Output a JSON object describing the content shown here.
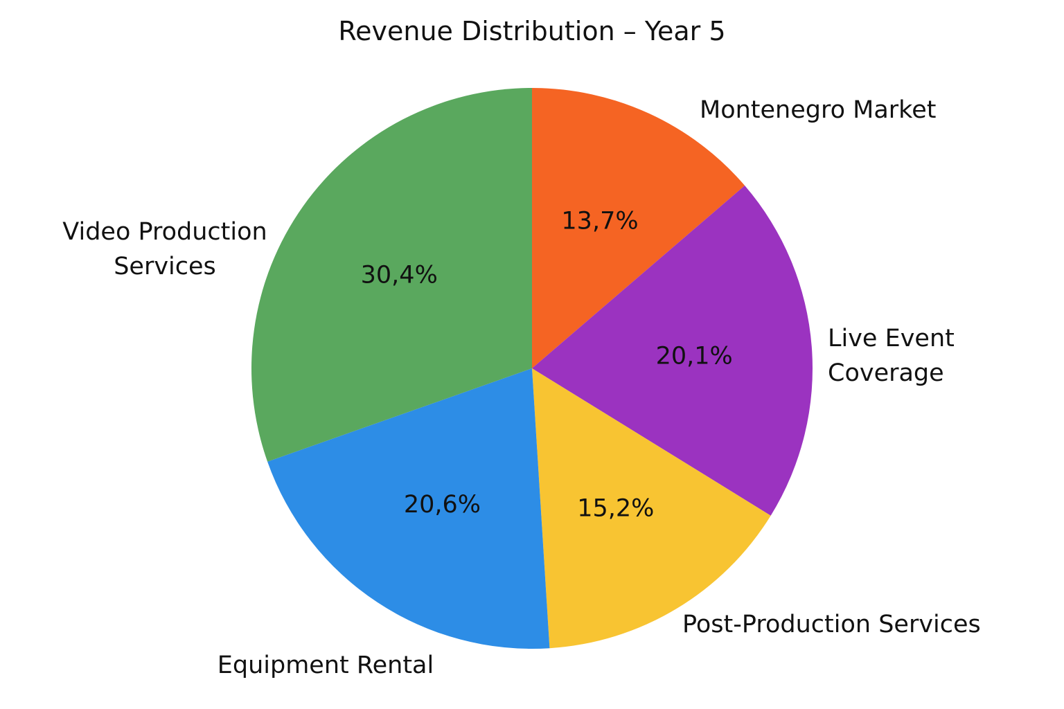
{
  "chart_data": {
    "type": "pie",
    "title": "Revenue Distribution – Year 5",
    "start_angle_deg": 0,
    "direction": "clockwise",
    "legend": "none",
    "slices": [
      {
        "label_lines": [
          "Montenegro Market"
        ],
        "value": 13.7,
        "display": "13,7%",
        "color": "#f56423"
      },
      {
        "label_lines": [
          "Live Event",
          "Coverage"
        ],
        "value": 20.1,
        "display": "20,1%",
        "color": "#9b33c0"
      },
      {
        "label_lines": [
          "Post-Production Services"
        ],
        "value": 15.2,
        "display": "15,2%",
        "color": "#f8c432"
      },
      {
        "label_lines": [
          "Equipment Rental"
        ],
        "value": 20.6,
        "display": "20,6%",
        "color": "#2d8de6"
      },
      {
        "label_lines": [
          "Video Production",
          "Services"
        ],
        "value": 30.4,
        "display": "30,4%",
        "color": "#5aa85e"
      }
    ]
  }
}
